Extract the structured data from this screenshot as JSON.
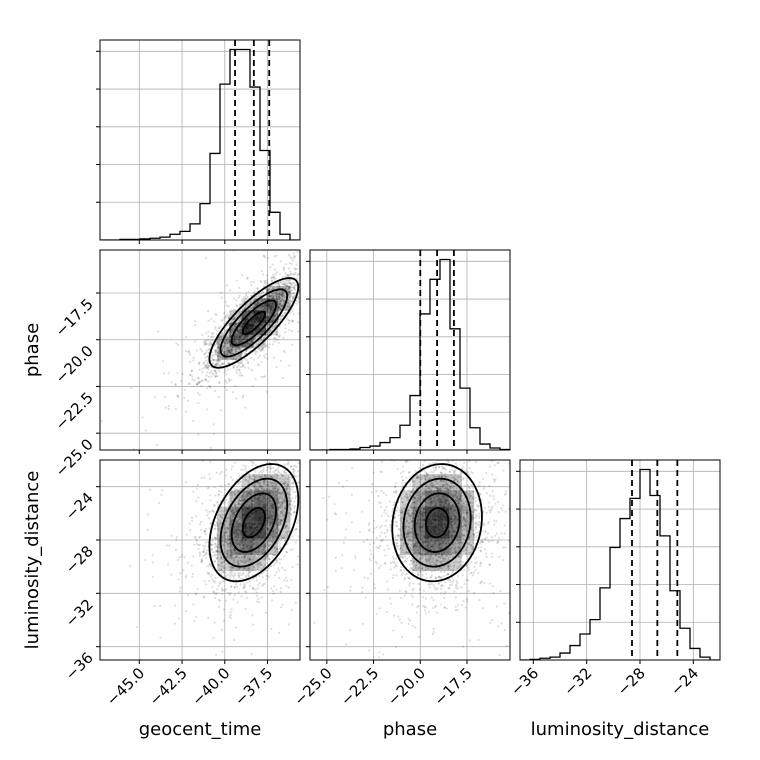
{
  "chart_data": {
    "type": "corner",
    "parameters": [
      "geocent_time",
      "phase",
      "luminosity_distance"
    ],
    "axis_labels": {
      "geocent_time": "geocent_time",
      "phase": "phase",
      "luminosity_distance": "luminosity_distance"
    },
    "ranges": {
      "geocent_time": [
        -47.3,
        -35.6
      ],
      "phase": [
        -25.9,
        -15.2
      ],
      "luminosity_distance": [
        -37.0,
        -22.0
      ]
    },
    "ticks": {
      "geocent_time": [
        -45.0,
        -42.5,
        -40.0,
        -37.5
      ],
      "phase": [
        -25.0,
        -22.5,
        -20.0,
        -17.5
      ],
      "luminosity_distance": [
        -36,
        -32,
        -28,
        -24
      ]
    },
    "tick_labels": {
      "geocent_time": [
        "−45.0",
        "−42.5",
        "−40.0",
        "−37.5"
      ],
      "phase": [
        "−25.0",
        "−22.5",
        "−20.0",
        "−17.5"
      ],
      "luminosity_distance": [
        "−36",
        "−32",
        "−28",
        "−24"
      ]
    },
    "quantiles": {
      "geocent_time": [
        -39.4,
        -38.3,
        -37.4
      ],
      "phase": [
        -20.0,
        -19.1,
        -18.2
      ],
      "luminosity_distance": [
        -28.6,
        -26.7,
        -25.2
      ]
    },
    "histograms": {
      "geocent_time": {
        "bin_edges": [
          -47.3,
          -46.715,
          -46.13,
          -45.545,
          -44.96,
          -44.375,
          -43.79,
          -43.205,
          -42.62,
          -42.035,
          -41.45,
          -40.865,
          -40.28,
          -39.695,
          -39.11,
          -38.525,
          -37.94,
          -37.355,
          -36.77,
          -36.185,
          -35.6
        ],
        "counts": [
          0,
          0,
          1,
          1,
          2,
          3,
          5,
          10,
          15,
          28,
          63,
          150,
          270,
          330,
          330,
          265,
          155,
          48,
          10,
          0
        ]
      },
      "phase": {
        "bin_edges": [
          -25.9,
          -25.365,
          -24.83,
          -24.295,
          -23.76,
          -23.225,
          -22.69,
          -22.155,
          -21.62,
          -21.085,
          -20.55,
          -20.015,
          -19.48,
          -18.945,
          -18.41,
          -17.875,
          -17.34,
          -16.805,
          -16.27,
          -15.735,
          -15.2
        ],
        "counts": [
          0,
          0,
          1,
          1,
          2,
          5,
          8,
          15,
          25,
          50,
          110,
          275,
          345,
          385,
          245,
          125,
          45,
          12,
          4,
          1
        ]
      },
      "luminosity_distance": {
        "bin_edges": [
          -37.0,
          -36.25,
          -35.5,
          -34.75,
          -34.0,
          -33.25,
          -32.5,
          -31.75,
          -31.0,
          -30.25,
          -29.5,
          -28.75,
          -28.0,
          -27.25,
          -26.5,
          -25.75,
          -25.0,
          -24.25,
          -23.5,
          -22.75,
          -22.0
        ],
        "counts": [
          0,
          1,
          3,
          5,
          12,
          25,
          45,
          70,
          125,
          195,
          245,
          280,
          330,
          285,
          215,
          120,
          55,
          20,
          5,
          0
        ]
      }
    },
    "samples_2d": {
      "phase_vs_geocent_time": {
        "x_mean": -38.3,
        "y_mean": -19.1,
        "x_sd": 1.3,
        "y_sd": 1.2,
        "correlation": 0.8
      },
      "luminosity_distance_vs_geocent_time": {
        "x_mean": -38.3,
        "y_mean": -26.7,
        "x_sd": 1.3,
        "y_sd": 2.2,
        "correlation": 0.4
      },
      "luminosity_distance_vs_phase": {
        "x_mean": -19.1,
        "y_mean": -26.7,
        "x_sd": 1.2,
        "y_sd": 2.2,
        "correlation": 0.1
      }
    },
    "contour_levels": [
      0.12,
      0.39,
      0.68,
      0.86
    ],
    "grid": true,
    "colors": {
      "line": "#000000",
      "grid": "#b0b0b0",
      "points": "#000000",
      "density": "#000000"
    }
  }
}
